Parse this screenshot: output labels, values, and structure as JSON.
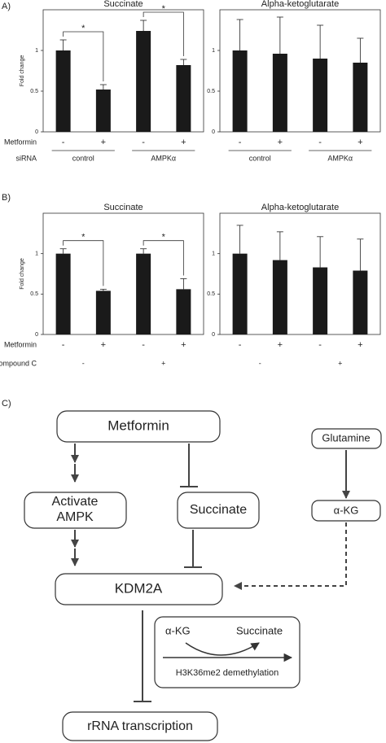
{
  "panel_labels": [
    "A)",
    "B)",
    "C)"
  ],
  "chart_data": [
    {
      "type": "bar",
      "title": "Succinate",
      "y_label": "Fold change",
      "categories": [
        "-",
        "+",
        "-",
        "+"
      ],
      "values": [
        1.0,
        0.52,
        1.24,
        0.82
      ],
      "errors": [
        0.13,
        0.06,
        0.13,
        0.07
      ],
      "color": "#1a1a1a",
      "ylim": [
        0,
        1.5
      ],
      "yticks": [
        0,
        0.5,
        1
      ],
      "row_labels": [
        "Metformin",
        "siRNA"
      ],
      "groups": [
        {
          "name": "control",
          "significance": "*"
        },
        {
          "name": "AMPKα",
          "significance": "*"
        }
      ],
      "group_line": true
    },
    {
      "type": "bar",
      "title": "Alpha-ketoglutarate",
      "categories": [
        "-",
        "+",
        "-",
        "+"
      ],
      "values": [
        1.0,
        0.96,
        0.9,
        0.85
      ],
      "errors": [
        0.38,
        0.45,
        0.41,
        0.3
      ],
      "color": "#1a1a1a",
      "ylim": [
        0,
        1.5
      ],
      "yticks": [
        0,
        0.5,
        1
      ],
      "groups": [
        {
          "name": "control"
        },
        {
          "name": "AMPKα"
        }
      ],
      "group_line": true
    },
    {
      "type": "bar",
      "title": "Succinate",
      "y_label": "Fold change",
      "categories": [
        "-",
        "+",
        "-",
        "+"
      ],
      "values": [
        1.0,
        0.54,
        1.0,
        0.56
      ],
      "errors": [
        0.06,
        0.02,
        0.06,
        0.13
      ],
      "color": "#1a1a1a",
      "ylim": [
        0,
        1.5
      ],
      "yticks": [
        0,
        0.5,
        1
      ],
      "row_labels": [
        "Metformin",
        "Compound C"
      ],
      "groups": [
        {
          "name": "-",
          "significance": "*"
        },
        {
          "name": "+",
          "significance": "*"
        }
      ],
      "group_line": false
    },
    {
      "type": "bar",
      "title": "Alpha-ketoglutarate",
      "categories": [
        "-",
        "+",
        "-",
        "+"
      ],
      "values": [
        1.0,
        0.92,
        0.83,
        0.79
      ],
      "errors": [
        0.35,
        0.35,
        0.38,
        0.39
      ],
      "color": "#1a1a1a",
      "ylim": [
        0,
        1.5
      ],
      "yticks": [
        0,
        0.5,
        1
      ],
      "groups": [
        {
          "name": "-"
        },
        {
          "name": "+"
        }
      ],
      "group_line": false
    }
  ],
  "diagram": {
    "nodes": {
      "metformin": "Metformin",
      "glutamine": "Glutamine",
      "ampk": [
        "Activate",
        "AMPK"
      ],
      "succinate": "Succinate",
      "akg": "α-KG",
      "kdm2a": "KDM2A",
      "rrna": "rRNA transcription"
    },
    "reaction": {
      "substrate": "α-KG",
      "product": "Succinate",
      "process": "H3K36me2 demethylation"
    }
  }
}
